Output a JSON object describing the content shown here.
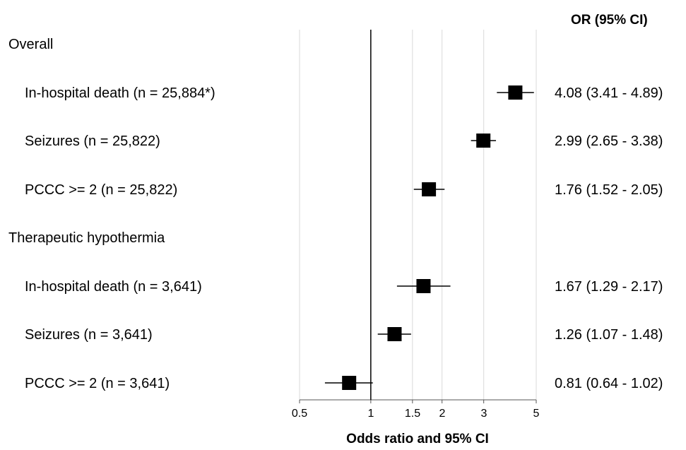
{
  "chart_data": {
    "type": "forest",
    "ci_header": "OR (95% CI)",
    "xlabel": "Odds ratio and 95% CI",
    "xscale": "log",
    "xlim": [
      0.5,
      5
    ],
    "xticks": [
      0.5,
      1,
      1.5,
      2,
      3,
      5
    ],
    "xtick_labels": [
      "0.5",
      "1",
      "1.5",
      "2",
      "3",
      "5"
    ],
    "reference_line": 1,
    "grid": true,
    "groups": [
      {
        "name": "Overall",
        "rows": [
          {
            "label": "In-hospital death (n = 25,884*)",
            "or": 4.08,
            "lo": 3.41,
            "hi": 4.89,
            "text": "4.08 (3.41 - 4.89)"
          },
          {
            "label": "Seizures (n = 25,822)",
            "or": 2.99,
            "lo": 2.65,
            "hi": 3.38,
            "text": "2.99 (2.65 - 3.38)"
          },
          {
            "label": "PCCC >= 2 (n = 25,822)",
            "or": 1.76,
            "lo": 1.52,
            "hi": 2.05,
            "text": "1.76 (1.52 - 2.05)"
          }
        ]
      },
      {
        "name": "Therapeutic hypothermia",
        "rows": [
          {
            "label": "In-hospital death (n = 3,641)",
            "or": 1.67,
            "lo": 1.29,
            "hi": 2.17,
            "text": "1.67 (1.29 - 2.17)"
          },
          {
            "label": "Seizures  (n = 3,641)",
            "or": 1.26,
            "lo": 1.07,
            "hi": 1.48,
            "text": "1.26 (1.07 - 1.48)"
          },
          {
            "label": "PCCC >= 2  (n = 3,641)",
            "or": 0.81,
            "lo": 0.64,
            "hi": 1.02,
            "text": "0.81 (0.64 - 1.02)"
          }
        ]
      }
    ]
  }
}
